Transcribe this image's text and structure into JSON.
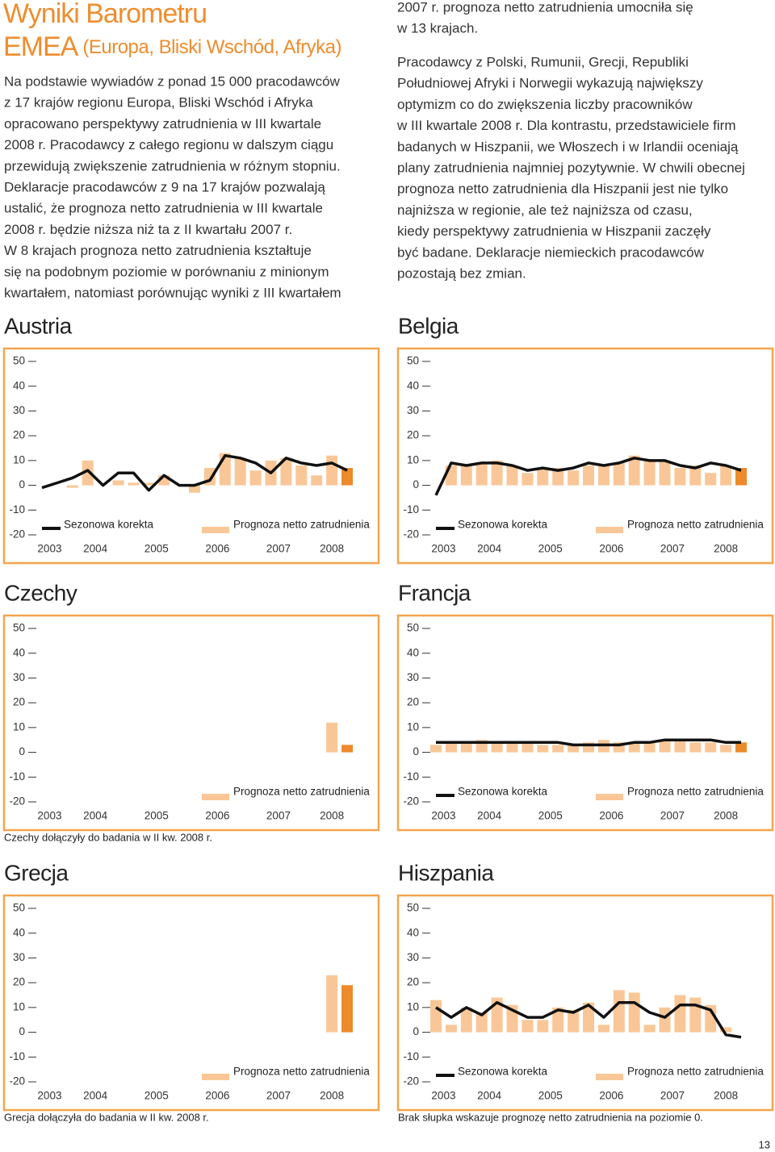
{
  "header": {
    "title": "Wyniki Barometru",
    "region": "EMEA",
    "region_note": "(Europa, Bliski Wschód, Afryka)"
  },
  "intro": {
    "left_lines": [
      "Na podstawie wywiadów z ponad 15 000 pracodawców",
      "z 17 krajów regionu Europa, Bliski Wschód i Afryka",
      "opracowano perspektywy zatrudnienia w III kwartale",
      "2008 r. Pracodawcy z całego regionu w dalszym ciągu",
      "przewidują zwiększenie zatrudnienia w różnym stopniu.",
      "Deklaracje pracodawców z 9 na 17 krajów pozwalają",
      "ustalić, że prognoza netto zatrudnienia w III kwartale",
      "2008 r. będzie niższa niż ta z II kwartału 2007 r.",
      "W 8 krajach prognoza netto zatrudnienia kształtuje",
      "się na podobnym poziomie w porównaniu z minionym",
      "kwartałem, natomiast porównując wyniki z III kwartałem"
    ],
    "right_lines_1": [
      "2007 r. prognoza netto zatrudnienia umocniła się",
      "w 13 krajach."
    ],
    "right_lines_2": [
      "Pracodawcy z Polski, Rumunii, Grecji, Republiki",
      "Południowej Afryki i Norwegii wykazują największy",
      "optymizm co do zwiększenia liczby pracowników",
      "w III kwartale 2008 r. Dla kontrastu, przedstawiciele firm",
      "badanych w Hiszpanii, we Włoszech i w Irlandii oceniają",
      "plany zatrudnienia najmniej pozytywnie. W chwili obecnej",
      "prognoza netto zatrudnienia dla Hiszpanii jest nie tylko",
      "najniższa w regionie, ale też najniższa od czasu,",
      "kiedy perspektywy zatrudnienia w Hiszpanii zaczęły",
      "być badane. Deklaracje niemieckich pracodawców",
      "pozostają bez zmian."
    ]
  },
  "chart_data": [
    {
      "type": "combo",
      "title": "Austria",
      "categories": [
        null,
        null,
        null,
        null,
        null,
        null,
        null,
        null,
        null,
        null,
        null,
        null,
        null,
        null,
        null,
        null,
        null,
        null,
        null,
        null,
        null
      ],
      "year_labels": [
        "2003",
        "2004",
        "2005",
        "2006",
        "2007",
        "2008"
      ],
      "ylim": [
        -20,
        50
      ],
      "yticks": [
        -20,
        -10,
        0,
        10,
        20,
        30,
        40,
        50
      ],
      "series": [
        {
          "name": "Prognoza netto zatrudnienia",
          "color": "#f9c797",
          "highlight_color": "#ec8a2c",
          "values": [
            null,
            null,
            -1,
            10,
            null,
            2,
            1,
            1,
            4,
            0,
            -3,
            7,
            13,
            11,
            6,
            10,
            11,
            8,
            4,
            12,
            7
          ]
        },
        {
          "name": "Sezonowa korekta",
          "color": "#111111",
          "values": [
            -1,
            1,
            3,
            6,
            0,
            5,
            5,
            -2,
            4,
            0,
            0,
            2,
            12,
            11,
            9,
            5,
            11,
            9,
            8,
            9,
            6
          ]
        }
      ]
    },
    {
      "type": "combo",
      "title": "Belgia",
      "categories": [
        null,
        null,
        null,
        null,
        null,
        null,
        null,
        null,
        null,
        null,
        null,
        null,
        null,
        null,
        null,
        null,
        null,
        null,
        null,
        null,
        null
      ],
      "year_labels": [
        "2003",
        "2004",
        "2005",
        "2006",
        "2007",
        "2008"
      ],
      "ylim": [
        -20,
        50
      ],
      "yticks": [
        -20,
        -10,
        0,
        10,
        20,
        30,
        40,
        50
      ],
      "series": [
        {
          "name": "Prognoza netto zatrudnienia",
          "color": "#f9c797",
          "highlight_color": "#ec8a2c",
          "values": [
            null,
            8,
            8,
            9,
            10,
            8,
            5,
            7,
            7,
            6,
            8,
            8,
            9,
            12,
            10,
            10,
            7,
            8,
            5,
            8,
            7
          ]
        },
        {
          "name": "Sezonowa korekta",
          "color": "#111111",
          "values": [
            -4,
            9,
            8,
            9,
            9,
            8,
            6,
            7,
            6,
            7,
            9,
            8,
            9,
            11,
            10,
            10,
            8,
            7,
            9,
            8,
            6
          ]
        }
      ]
    },
    {
      "type": "combo",
      "title": "Czechy",
      "categories": [
        null,
        null,
        null,
        null,
        null,
        null,
        null,
        null,
        null,
        null,
        null,
        null,
        null,
        null,
        null,
        null,
        null,
        null,
        null,
        null,
        null
      ],
      "year_labels": [
        "2003",
        "2004",
        "2005",
        "2006",
        "2007",
        "2008"
      ],
      "ylim": [
        -20,
        50
      ],
      "yticks": [
        -20,
        -10,
        0,
        10,
        20,
        30,
        40,
        50
      ],
      "series": [
        {
          "name": "Prognoza netto zatrudnienia",
          "color": "#f9c797",
          "highlight_color": "#ec8a2c",
          "values": [
            null,
            null,
            null,
            null,
            null,
            null,
            null,
            null,
            null,
            null,
            null,
            null,
            null,
            null,
            null,
            null,
            null,
            null,
            null,
            12,
            3
          ]
        }
      ],
      "note": "Czechy dołączyły do badania w II kw. 2008 r."
    },
    {
      "type": "combo",
      "title": "Francja",
      "categories": [
        null,
        null,
        null,
        null,
        null,
        null,
        null,
        null,
        null,
        null,
        null,
        null,
        null,
        null,
        null,
        null,
        null,
        null,
        null,
        null,
        null
      ],
      "year_labels": [
        "2003",
        "2004",
        "2005",
        "2006",
        "2007",
        "2008"
      ],
      "ylim": [
        -20,
        50
      ],
      "yticks": [
        -20,
        -10,
        0,
        10,
        20,
        30,
        40,
        50
      ],
      "series": [
        {
          "name": "Prognoza netto zatrudnienia",
          "color": "#f9c797",
          "highlight_color": "#ec8a2c",
          "values": [
            3,
            4,
            4,
            5,
            4,
            4,
            4,
            3,
            3,
            3,
            4,
            5,
            4,
            4,
            4,
            5,
            5,
            4,
            4,
            3,
            4
          ]
        },
        {
          "name": "Sezonowa korekta",
          "color": "#111111",
          "values": [
            4,
            4,
            4,
            4,
            4,
            4,
            4,
            4,
            4,
            3,
            3,
            3,
            3,
            4,
            4,
            5,
            5,
            5,
            5,
            4,
            4
          ]
        }
      ]
    },
    {
      "type": "combo",
      "title": "Grecja",
      "categories": [
        null,
        null,
        null,
        null,
        null,
        null,
        null,
        null,
        null,
        null,
        null,
        null,
        null,
        null,
        null,
        null,
        null,
        null,
        null,
        null,
        null
      ],
      "year_labels": [
        "2003",
        "2004",
        "2005",
        "2006",
        "2007",
        "2008"
      ],
      "ylim": [
        -20,
        50
      ],
      "yticks": [
        -20,
        -10,
        0,
        10,
        20,
        30,
        40,
        50
      ],
      "series": [
        {
          "name": "Prognoza netto zatrudnienia",
          "color": "#f9c797",
          "highlight_color": "#ec8a2c",
          "values": [
            null,
            null,
            null,
            null,
            null,
            null,
            null,
            null,
            null,
            null,
            null,
            null,
            null,
            null,
            null,
            null,
            null,
            null,
            null,
            23,
            19
          ]
        }
      ],
      "note": "Grecja dołączyła do badania w II kw. 2008 r."
    },
    {
      "type": "combo",
      "title": "Hiszpania",
      "categories": [
        null,
        null,
        null,
        null,
        null,
        null,
        null,
        null,
        null,
        null,
        null,
        null,
        null,
        null,
        null,
        null,
        null,
        null,
        null,
        null,
        null
      ],
      "year_labels": [
        "2003",
        "2004",
        "2005",
        "2006",
        "2007",
        "2008"
      ],
      "ylim": [
        -20,
        50
      ],
      "yticks": [
        -20,
        -10,
        0,
        10,
        20,
        30,
        40,
        50
      ],
      "series": [
        {
          "name": "Prognoza netto zatrudnienia",
          "color": "#f9c797",
          "highlight_color": "#ec8a2c",
          "values": [
            13,
            3,
            10,
            8,
            14,
            11,
            5,
            5,
            10,
            9,
            12,
            3,
            17,
            16,
            3,
            10,
            15,
            14,
            11,
            2,
            0
          ]
        },
        {
          "name": "Sezonowa korekta",
          "color": "#111111",
          "values": [
            10,
            6,
            10,
            7,
            12,
            9,
            6,
            6,
            9,
            8,
            11,
            6,
            12,
            12,
            8,
            6,
            11,
            11,
            9,
            -1,
            -2
          ]
        }
      ],
      "note": "Brak słupka wskazuje prognozę netto zatrudnienia na poziomie 0."
    }
  ],
  "page_number": "13"
}
